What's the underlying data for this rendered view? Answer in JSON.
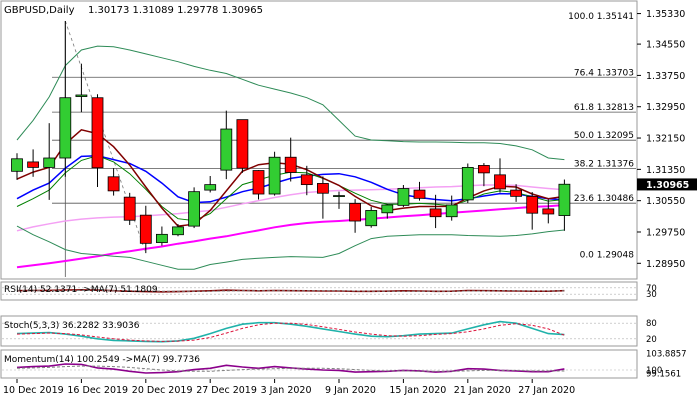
{
  "header": {
    "symbol": "GBPUSD,Daily",
    "ohlc": "1.30173 1.31089 1.29778 1.30965"
  },
  "colors": {
    "bull": "#32cd32",
    "bear": "#ff0000",
    "ma_blue": "#0000ff",
    "ma_magenta": "#ff00ff",
    "ma_green": "#008000",
    "ma_maroon": "#800000",
    "ma_pink": "#f4a0f4",
    "bollinger": "#2e8b57",
    "fib": "#555555",
    "current_price_box": "#000000"
  },
  "chart_data": [
    {
      "type": "candlestick",
      "name": "main",
      "ylim": [
        1.286,
        1.356
      ],
      "yticks": [
        "1.35330",
        "1.34550",
        "1.33750",
        "1.32950",
        "1.32150",
        "1.31350",
        "1.30550",
        "1.29750",
        "1.28950"
      ],
      "current_price": "1.30965",
      "xticks": [
        {
          "i": 0,
          "label": "10 Dec 2019"
        },
        {
          "i": 4,
          "label": "16 Dec 2019"
        },
        {
          "i": 8,
          "label": "20 Dec 2019"
        },
        {
          "i": 12,
          "label": "27 Dec 2019"
        },
        {
          "i": 16,
          "label": "3 Jan 2020"
        },
        {
          "i": 20,
          "label": "9 Jan 2020"
        },
        {
          "i": 24,
          "label": "15 Jan 2020"
        },
        {
          "i": 28,
          "label": "21 Jan 2020"
        },
        {
          "i": 32,
          "label": "27 Jan 2020"
        }
      ],
      "candles": [
        [
          1.313,
          1.3176,
          1.3108,
          1.3162
        ],
        [
          1.3154,
          1.3186,
          1.3116,
          1.314
        ],
        [
          1.314,
          1.3253,
          1.3057,
          1.3164
        ],
        [
          1.3164,
          1.3514,
          1.3116,
          1.3318
        ],
        [
          1.3321,
          1.3405,
          1.3281,
          1.3325
        ],
        [
          1.3318,
          1.3327,
          1.309,
          1.3139
        ],
        [
          1.3116,
          1.3138,
          1.3068,
          1.308
        ],
        [
          1.3064,
          1.3075,
          1.2993,
          1.3005
        ],
        [
          1.3018,
          1.3042,
          1.2921,
          1.2946
        ],
        [
          1.2948,
          1.2989,
          1.294,
          1.2969
        ],
        [
          1.2968,
          1.2995,
          1.2964,
          1.2988
        ],
        [
          1.299,
          1.3089,
          1.2985,
          1.3078
        ],
        [
          1.3082,
          1.3118,
          1.3076,
          1.3096
        ],
        [
          1.3133,
          1.3285,
          1.311,
          1.3238
        ],
        [
          1.3262,
          1.3262,
          1.3126,
          1.3138
        ],
        [
          1.3132,
          1.3133,
          1.3058,
          1.3072
        ],
        [
          1.3072,
          1.318,
          1.3068,
          1.3166
        ],
        [
          1.3166,
          1.3216,
          1.3104,
          1.3127
        ],
        [
          1.3121,
          1.3144,
          1.3069,
          1.3096
        ],
        [
          1.3099,
          1.3117,
          1.3009,
          1.3074
        ],
        [
          1.3067,
          1.3078,
          1.3034,
          1.3068
        ],
        [
          1.3048,
          1.3059,
          1.2973,
          1.3003
        ],
        [
          1.2991,
          1.3039,
          1.2986,
          1.303
        ],
        [
          1.3024,
          1.3046,
          1.3009,
          1.3044
        ],
        [
          1.3043,
          1.3095,
          1.3039,
          1.3086
        ],
        [
          1.3082,
          1.3103,
          1.3055,
          1.3061
        ],
        [
          1.3034,
          1.307,
          1.2985,
          1.3014
        ],
        [
          1.3014,
          1.3068,
          1.3004,
          1.3044
        ],
        [
          1.3057,
          1.315,
          1.3049,
          1.314
        ],
        [
          1.3145,
          1.3151,
          1.3092,
          1.3126
        ],
        [
          1.3121,
          1.3163,
          1.3076,
          1.3085
        ],
        [
          1.3082,
          1.3097,
          1.3052,
          1.3066
        ],
        [
          1.3066,
          1.3077,
          1.2981,
          1.3023
        ],
        [
          1.3034,
          1.3058,
          1.2997,
          1.3021
        ],
        [
          1.3017,
          1.3109,
          1.2978,
          1.3097
        ]
      ],
      "fib_levels": [
        {
          "label": "100.0 1.35141",
          "value": 1.35141,
          "line": false
        },
        {
          "label": "76.4 1.33703",
          "value": 1.33703,
          "line": true
        },
        {
          "label": "61.8 1.32813",
          "value": 1.32813,
          "line": true
        },
        {
          "label": "50.0 1.32095",
          "value": 1.32095,
          "line": true
        },
        {
          "label": "38.2 1.31376",
          "value": 1.31376,
          "line": true
        },
        {
          "label": "23.6 1.30486",
          "value": 1.30486,
          "line": true
        },
        {
          "label": "0.0 1.29048",
          "value": 1.29048,
          "line": false
        }
      ],
      "moving_averages": [
        {
          "key": "ma_magenta",
          "width": 2,
          "values": [
            1.2885,
            1.289,
            1.2895,
            1.2901,
            1.2907,
            1.2913,
            1.292,
            1.2926,
            1.2932,
            1.2938,
            1.2945,
            1.2951,
            1.2958,
            1.2964,
            1.2972,
            1.2979,
            1.2987,
            1.2993,
            1.2998,
            1.3001,
            1.3003,
            1.3006,
            1.3009,
            1.3012,
            1.3015,
            1.3018,
            1.3021,
            1.3024,
            1.3027,
            1.303,
            1.3033,
            1.3036,
            1.3039,
            1.3041,
            1.3044
          ]
        },
        {
          "key": "ma_pink",
          "width": 1.5,
          "values": [
            1.2978,
            1.2988,
            1.2996,
            1.3003,
            1.3008,
            1.3011,
            1.3013,
            1.3014,
            1.3016,
            1.3019,
            1.3022,
            1.3026,
            1.303,
            1.3038,
            1.3047,
            1.3055,
            1.3063,
            1.307,
            1.3076,
            1.3079,
            1.3081,
            1.3082,
            1.3083,
            1.3084,
            1.3086,
            1.3088,
            1.309,
            1.3091,
            1.3093,
            1.3095,
            1.3095,
            1.3094,
            1.309,
            1.3086,
            1.3083
          ]
        },
        {
          "key": "ma_blue",
          "width": 1.5,
          "values": [
            1.306,
            1.3082,
            1.31,
            1.3138,
            1.3168,
            1.317,
            1.316,
            1.315,
            1.313,
            1.31,
            1.3065,
            1.305,
            1.3052,
            1.3064,
            1.3078,
            1.3087,
            1.31,
            1.3112,
            1.3118,
            1.3122,
            1.3124,
            1.3116,
            1.3102,
            1.3084,
            1.307,
            1.3063,
            1.3058,
            1.3055,
            1.306,
            1.3067,
            1.3073,
            1.3072,
            1.3066,
            1.306,
            1.3057
          ]
        },
        {
          "key": "ma_green",
          "width": 1,
          "values": [
            1.304,
            1.306,
            1.3082,
            1.3126,
            1.3158,
            1.317,
            1.3154,
            1.3124,
            1.3084,
            1.304,
            1.3009,
            1.3004,
            1.3022,
            1.306,
            1.3096,
            1.3108,
            1.312,
            1.3128,
            1.3126,
            1.3112,
            1.3094,
            1.3074,
            1.3056,
            1.3046,
            1.3046,
            1.3048,
            1.3046,
            1.3042,
            1.3056,
            1.3072,
            1.308,
            1.3076,
            1.3065,
            1.3054,
            1.3058
          ]
        },
        {
          "key": "ma_maroon",
          "width": 1.5,
          "values": [
            1.311,
            1.3128,
            1.314,
            1.32,
            1.3236,
            1.3226,
            1.3193,
            1.3146,
            1.309,
            1.3036,
            1.299,
            1.2995,
            1.303,
            1.308,
            1.313,
            1.3147,
            1.3152,
            1.3148,
            1.3134,
            1.3113,
            1.3094,
            1.3066,
            1.3042,
            1.303,
            1.3036,
            1.304,
            1.304,
            1.3041,
            1.3062,
            1.308,
            1.3092,
            1.309,
            1.3072,
            1.306,
            1.3066
          ]
        },
        {
          "key": "bollinger",
          "width": 1,
          "values": [
            1.321,
            1.326,
            1.332,
            1.34,
            1.344,
            1.345,
            1.3448,
            1.344,
            1.343,
            1.342,
            1.341,
            1.3398,
            1.3388,
            1.338,
            1.3365,
            1.335,
            1.334,
            1.333,
            1.3318,
            1.33,
            1.326,
            1.322,
            1.321,
            1.3208,
            1.3206,
            1.3205,
            1.3205,
            1.3204,
            1.3203,
            1.3203,
            1.3201,
            1.3195,
            1.3185,
            1.3164,
            1.316
          ]
        },
        {
          "key": "bollinger",
          "width": 1,
          "values": [
            1.299,
            1.2968,
            1.295,
            1.293,
            1.292,
            1.2917,
            1.2913,
            1.291,
            1.29,
            1.289,
            1.288,
            1.288,
            1.2892,
            1.2898,
            1.2905,
            1.2908,
            1.291,
            1.2912,
            1.2911,
            1.291,
            1.292,
            1.294,
            1.2958,
            1.2964,
            1.2966,
            1.2968,
            1.2968,
            1.2968,
            1.2966,
            1.2965,
            1.2964,
            1.2966,
            1.297,
            1.2976,
            1.298
          ]
        }
      ]
    },
    {
      "type": "line",
      "name": "RSI",
      "title": "RSI(14) 52.1371 ->MA(7) 51.1809",
      "ylim": [
        0,
        100
      ],
      "yticks": [
        "70",
        "30"
      ],
      "levels": [
        70,
        30
      ],
      "series": [
        {
          "values": [
            52,
            53,
            54,
            56,
            57,
            55,
            52,
            49,
            46,
            45,
            46,
            49,
            51,
            55,
            53,
            51,
            53,
            52,
            51,
            50,
            50,
            48,
            48,
            49,
            51,
            50,
            48,
            49,
            53,
            52,
            51,
            50,
            49,
            49,
            52
          ],
          "color": "#800000"
        },
        {
          "values": [
            51,
            51,
            52,
            52,
            53,
            53,
            52,
            51,
            50,
            49,
            48,
            48,
            49,
            50,
            51,
            51,
            52,
            52,
            52,
            51,
            51,
            50,
            49,
            49,
            49,
            49,
            49,
            49,
            50,
            50,
            51,
            51,
            50,
            50,
            51
          ],
          "color": "#808080"
        }
      ]
    },
    {
      "type": "line",
      "name": "Stoch",
      "title": "Stoch(5,3,3) 36.2282 33.9036",
      "ylim": [
        0,
        100
      ],
      "yticks": [
        "80",
        "20"
      ],
      "levels": [
        80,
        20
      ],
      "series": [
        {
          "values": [
            40,
            42,
            44,
            38,
            30,
            20,
            14,
            12,
            10,
            9,
            12,
            22,
            40,
            60,
            76,
            82,
            82,
            76,
            68,
            58,
            48,
            38,
            30,
            28,
            32,
            38,
            40,
            42,
            58,
            74,
            86,
            80,
            60,
            40,
            36
          ],
          "color": "#20b2aa"
        },
        {
          "values": [
            38,
            40,
            42,
            40,
            35,
            27,
            20,
            15,
            12,
            10,
            11,
            15,
            25,
            42,
            60,
            74,
            80,
            80,
            75,
            66,
            56,
            46,
            38,
            32,
            30,
            32,
            37,
            40,
            47,
            58,
            72,
            78,
            72,
            58,
            34
          ],
          "color": "#dc143c"
        }
      ]
    },
    {
      "type": "line",
      "name": "Momentum",
      "title": "Momentum(14) 100.2549 ->MA(7) 99.7736",
      "ylim": [
        98.6,
        104.2
      ],
      "yticks": [
        "103.8857",
        "100",
        "99.1561"
      ],
      "levels": [
        100
      ],
      "series": [
        {
          "values": [
            100.6,
            100.8,
            100.9,
            101.4,
            101.3,
            100.5,
            100.2,
            99.7,
            99.3,
            99.4,
            99.6,
            100.1,
            100.4,
            101.1,
            100.7,
            100.4,
            100.8,
            100.5,
            100.2,
            100.0,
            99.9,
            99.5,
            99.6,
            99.7,
            99.9,
            99.8,
            99.5,
            99.7,
            100.3,
            100.2,
            99.9,
            99.8,
            99.6,
            99.6,
            100.25
          ],
          "color": "#8b008b"
        },
        {
          "values": [
            100.4,
            100.5,
            100.6,
            100.8,
            100.9,
            100.9,
            100.8,
            100.6,
            100.3,
            100.0,
            99.8,
            99.7,
            99.7,
            99.9,
            100.1,
            100.2,
            100.3,
            100.4,
            100.4,
            100.4,
            100.3,
            100.1,
            99.9,
            99.8,
            99.8,
            99.7,
            99.7,
            99.7,
            99.8,
            99.9,
            99.9,
            99.9,
            99.8,
            99.8,
            99.77
          ],
          "color": "#808080"
        }
      ]
    }
  ]
}
